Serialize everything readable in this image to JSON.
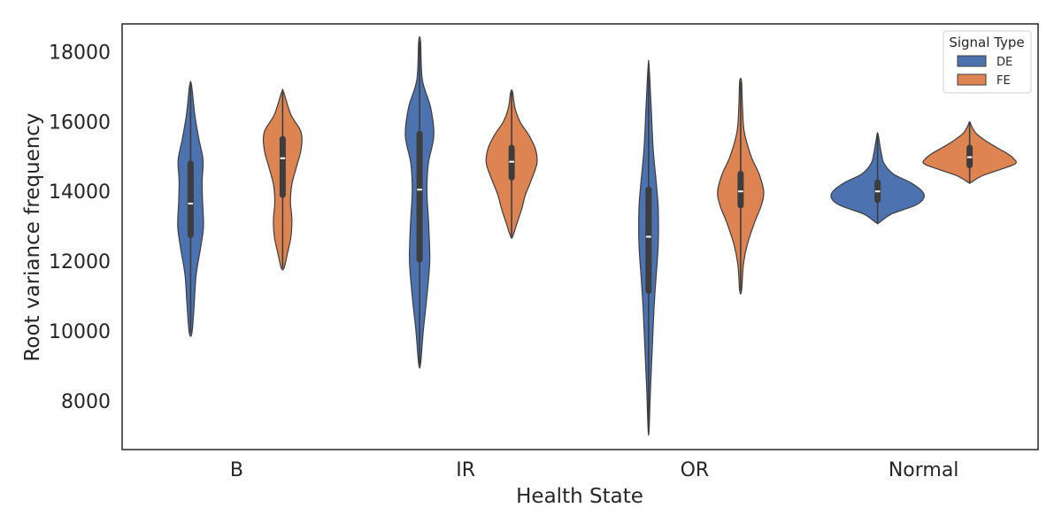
{
  "chart_data": {
    "type": "violin",
    "xlabel": "Health State",
    "ylabel": "Root variance frequency",
    "categories": [
      "B",
      "IR",
      "OR",
      "Normal"
    ],
    "ylim": [
      6600,
      18800
    ],
    "yticks": [
      8000,
      10000,
      12000,
      14000,
      16000,
      18000
    ],
    "grid": false,
    "legend": {
      "title": "Signal Type",
      "placement": "top-right"
    },
    "series": [
      {
        "name": "DE",
        "color": "#4c72b0",
        "violins": [
          {
            "category": "B",
            "min": 9950,
            "max": 17050,
            "q1": 12750,
            "median": 13650,
            "q3": 14800,
            "density": [
              [
                9950,
                0.03
              ],
              [
                10800,
                0.08
              ],
              [
                11600,
                0.12
              ],
              [
                12400,
                0.22
              ],
              [
                13000,
                0.28
              ],
              [
                13700,
                0.26
              ],
              [
                14300,
                0.25
              ],
              [
                14900,
                0.27
              ],
              [
                15500,
                0.18
              ],
              [
                16200,
                0.09
              ],
              [
                17050,
                0.02
              ]
            ]
          },
          {
            "category": "IR",
            "min": 9050,
            "max": 18300,
            "q1": 12050,
            "median": 14050,
            "q3": 15650,
            "density": [
              [
                9050,
                0.02
              ],
              [
                10000,
                0.08
              ],
              [
                11000,
                0.16
              ],
              [
                12000,
                0.22
              ],
              [
                13000,
                0.2
              ],
              [
                14000,
                0.16
              ],
              [
                14800,
                0.19
              ],
              [
                15600,
                0.31
              ],
              [
                16400,
                0.24
              ],
              [
                17200,
                0.06
              ],
              [
                18300,
                0.02
              ]
            ]
          },
          {
            "category": "OR",
            "min": 7150,
            "max": 17600,
            "q1": 11150,
            "median": 12700,
            "q3": 14050,
            "density": [
              [
                7150,
                0.01
              ],
              [
                8300,
                0.04
              ],
              [
                9500,
                0.08
              ],
              [
                10700,
                0.12
              ],
              [
                11500,
                0.16
              ],
              [
                12500,
                0.21
              ],
              [
                13500,
                0.21
              ],
              [
                14200,
                0.17
              ],
              [
                15200,
                0.1
              ],
              [
                16300,
                0.06
              ],
              [
                17600,
                0.01
              ]
            ]
          },
          {
            "category": "Normal",
            "min": 13100,
            "max": 15650,
            "q1": 13750,
            "median": 14000,
            "q3": 14250,
            "density": [
              [
                13100,
                0.03
              ],
              [
                13350,
                0.3
              ],
              [
                13600,
                0.82
              ],
              [
                13800,
                1.0
              ],
              [
                14000,
                0.97
              ],
              [
                14250,
                0.72
              ],
              [
                14500,
                0.34
              ],
              [
                14800,
                0.14
              ],
              [
                15100,
                0.08
              ],
              [
                15400,
                0.04
              ],
              [
                15650,
                0.01
              ]
            ]
          }
        ]
      },
      {
        "name": "FE",
        "color": "#dd8452",
        "violins": [
          {
            "category": "B",
            "min": 11800,
            "max": 16850,
            "q1": 13900,
            "median": 14950,
            "q3": 15500,
            "density": [
              [
                11800,
                0.03
              ],
              [
                12200,
                0.1
              ],
              [
                12700,
                0.18
              ],
              [
                13200,
                0.2
              ],
              [
                13700,
                0.17
              ],
              [
                14200,
                0.2
              ],
              [
                14700,
                0.3
              ],
              [
                15200,
                0.4
              ],
              [
                15700,
                0.4
              ],
              [
                16200,
                0.18
              ],
              [
                16850,
                0.02
              ]
            ]
          },
          {
            "category": "IR",
            "min": 12700,
            "max": 16850,
            "q1": 14400,
            "median": 14850,
            "q3": 15250,
            "density": [
              [
                12700,
                0.02
              ],
              [
                13100,
                0.12
              ],
              [
                13500,
                0.22
              ],
              [
                13900,
                0.3
              ],
              [
                14300,
                0.42
              ],
              [
                14800,
                0.55
              ],
              [
                15200,
                0.52
              ],
              [
                15600,
                0.38
              ],
              [
                16000,
                0.18
              ],
              [
                16400,
                0.07
              ],
              [
                16850,
                0.02
              ]
            ]
          },
          {
            "category": "OR",
            "min": 11150,
            "max": 17150,
            "q1": 13600,
            "median": 14000,
            "q3": 14500,
            "density": [
              [
                11150,
                0.02
              ],
              [
                11900,
                0.06
              ],
              [
                12500,
                0.15
              ],
              [
                13100,
                0.3
              ],
              [
                13600,
                0.45
              ],
              [
                14000,
                0.5
              ],
              [
                14500,
                0.4
              ],
              [
                15000,
                0.23
              ],
              [
                15700,
                0.08
              ],
              [
                16400,
                0.04
              ],
              [
                17150,
                0.02
              ]
            ]
          },
          {
            "category": "Normal",
            "min": 14250,
            "max": 15980,
            "q1": 14750,
            "median": 14980,
            "q3": 15250,
            "density": [
              [
                14250,
                0.02
              ],
              [
                14450,
                0.28
              ],
              [
                14650,
                0.72
              ],
              [
                14800,
                1.0
              ],
              [
                14950,
                0.95
              ],
              [
                15100,
                0.8
              ],
              [
                15250,
                0.6
              ],
              [
                15450,
                0.35
              ],
              [
                15650,
                0.15
              ],
              [
                15850,
                0.05
              ],
              [
                15980,
                0.01
              ]
            ]
          }
        ]
      }
    ]
  }
}
